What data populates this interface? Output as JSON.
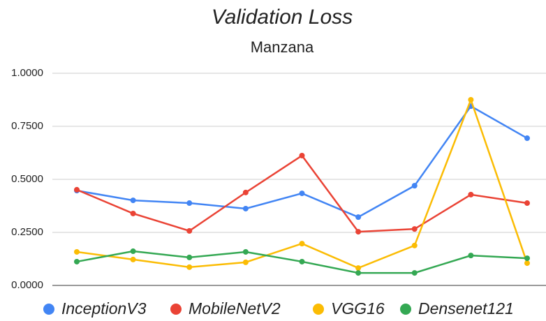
{
  "chart_data": {
    "type": "line",
    "title": "Validation Loss",
    "subtitle": "Manzana",
    "categories": [
      null,
      null,
      null,
      null,
      null,
      null,
      null,
      null,
      null
    ],
    "series": [
      {
        "name": "InceptionV3",
        "color": "#4285f4",
        "values": [
          0.447,
          0.401,
          0.388,
          0.362,
          0.434,
          0.322,
          0.47,
          0.845,
          0.694
        ]
      },
      {
        "name": "MobileNetV2",
        "color": "#ea4335",
        "values": [
          0.451,
          0.339,
          0.257,
          0.438,
          0.612,
          0.253,
          0.266,
          0.428,
          0.388
        ]
      },
      {
        "name": "VGG16",
        "color": "#fbbc04",
        "values": [
          0.158,
          0.122,
          0.086,
          0.109,
          0.197,
          0.082,
          0.188,
          0.875,
          0.105
        ]
      },
      {
        "name": "Densenet121",
        "color": "#34a853",
        "values": [
          0.112,
          0.161,
          0.132,
          0.158,
          0.112,
          0.059,
          0.059,
          0.141,
          0.128
        ]
      }
    ],
    "ylim": [
      0,
      1
    ],
    "yticks": [
      {
        "value": 0,
        "label": "0.0000"
      },
      {
        "value": 0.25,
        "label": "0.2500"
      },
      {
        "value": 0.5,
        "label": "0.5000"
      },
      {
        "value": 0.75,
        "label": "0.7500"
      },
      {
        "value": 1,
        "label": "1.0000"
      }
    ],
    "grid": true,
    "legend": "bottom"
  }
}
